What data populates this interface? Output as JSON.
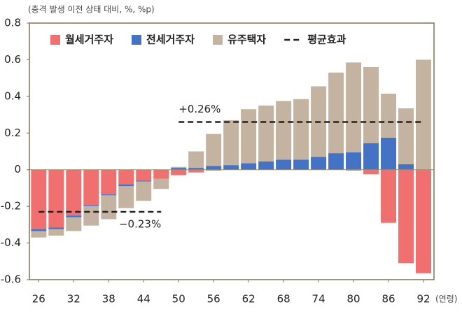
{
  "chart_data": {
    "type": "bar",
    "stacked": true,
    "y_unit_label": "(충격 발생 이전 상태 대비, %, %p)",
    "x_unit_label": "(연령)",
    "x": [
      26,
      29,
      32,
      35,
      38,
      41,
      44,
      47,
      50,
      53,
      56,
      59,
      62,
      65,
      68,
      71,
      74,
      77,
      80,
      83,
      86,
      89,
      92
    ],
    "xlim": [
      24.4,
      93.8
    ],
    "xticks": [
      26,
      32,
      38,
      44,
      50,
      56,
      62,
      68,
      74,
      80,
      86,
      92
    ],
    "ylim": [
      -0.6,
      0.8
    ],
    "yticks": [
      0.8,
      0.6,
      0.4,
      0.2,
      0,
      -0.2,
      -0.4,
      -0.6
    ],
    "series": [
      {
        "name": "월세거주자",
        "color": "#f07070",
        "values": [
          -0.325,
          -0.315,
          -0.25,
          -0.195,
          -0.135,
          -0.08,
          -0.06,
          -0.05,
          -0.03,
          -0.015,
          -0.005,
          0,
          0,
          0,
          0,
          0,
          0,
          0,
          -0.005,
          -0.025,
          -0.29,
          -0.51,
          -0.565
        ]
      },
      {
        "name": "전세거주자",
        "color": "#4472c4",
        "values": [
          -0.01,
          -0.01,
          -0.01,
          -0.005,
          -0.005,
          -0.01,
          -0.005,
          0,
          0.01,
          0.01,
          0.02,
          0.025,
          0.035,
          0.045,
          0.055,
          0.055,
          0.07,
          0.09,
          0.095,
          0.145,
          0.175,
          0.03,
          0
        ]
      },
      {
        "name": "유주택자",
        "color": "#c4b3a0",
        "values": [
          -0.035,
          -0.035,
          -0.075,
          -0.105,
          -0.13,
          -0.12,
          -0.105,
          -0.055,
          0.005,
          0.09,
          0.175,
          0.245,
          0.295,
          0.305,
          0.32,
          0.33,
          0.385,
          0.44,
          0.49,
          0.415,
          0.24,
          0.305,
          0.6
        ]
      }
    ],
    "average_name": "평균효과",
    "averages": [
      {
        "value": -0.23,
        "label": "−0.23%",
        "x_range": [
          26,
          47
        ]
      },
      {
        "value": 0.26,
        "label": "+0.26%",
        "x_range": [
          50,
          92
        ]
      }
    ]
  }
}
